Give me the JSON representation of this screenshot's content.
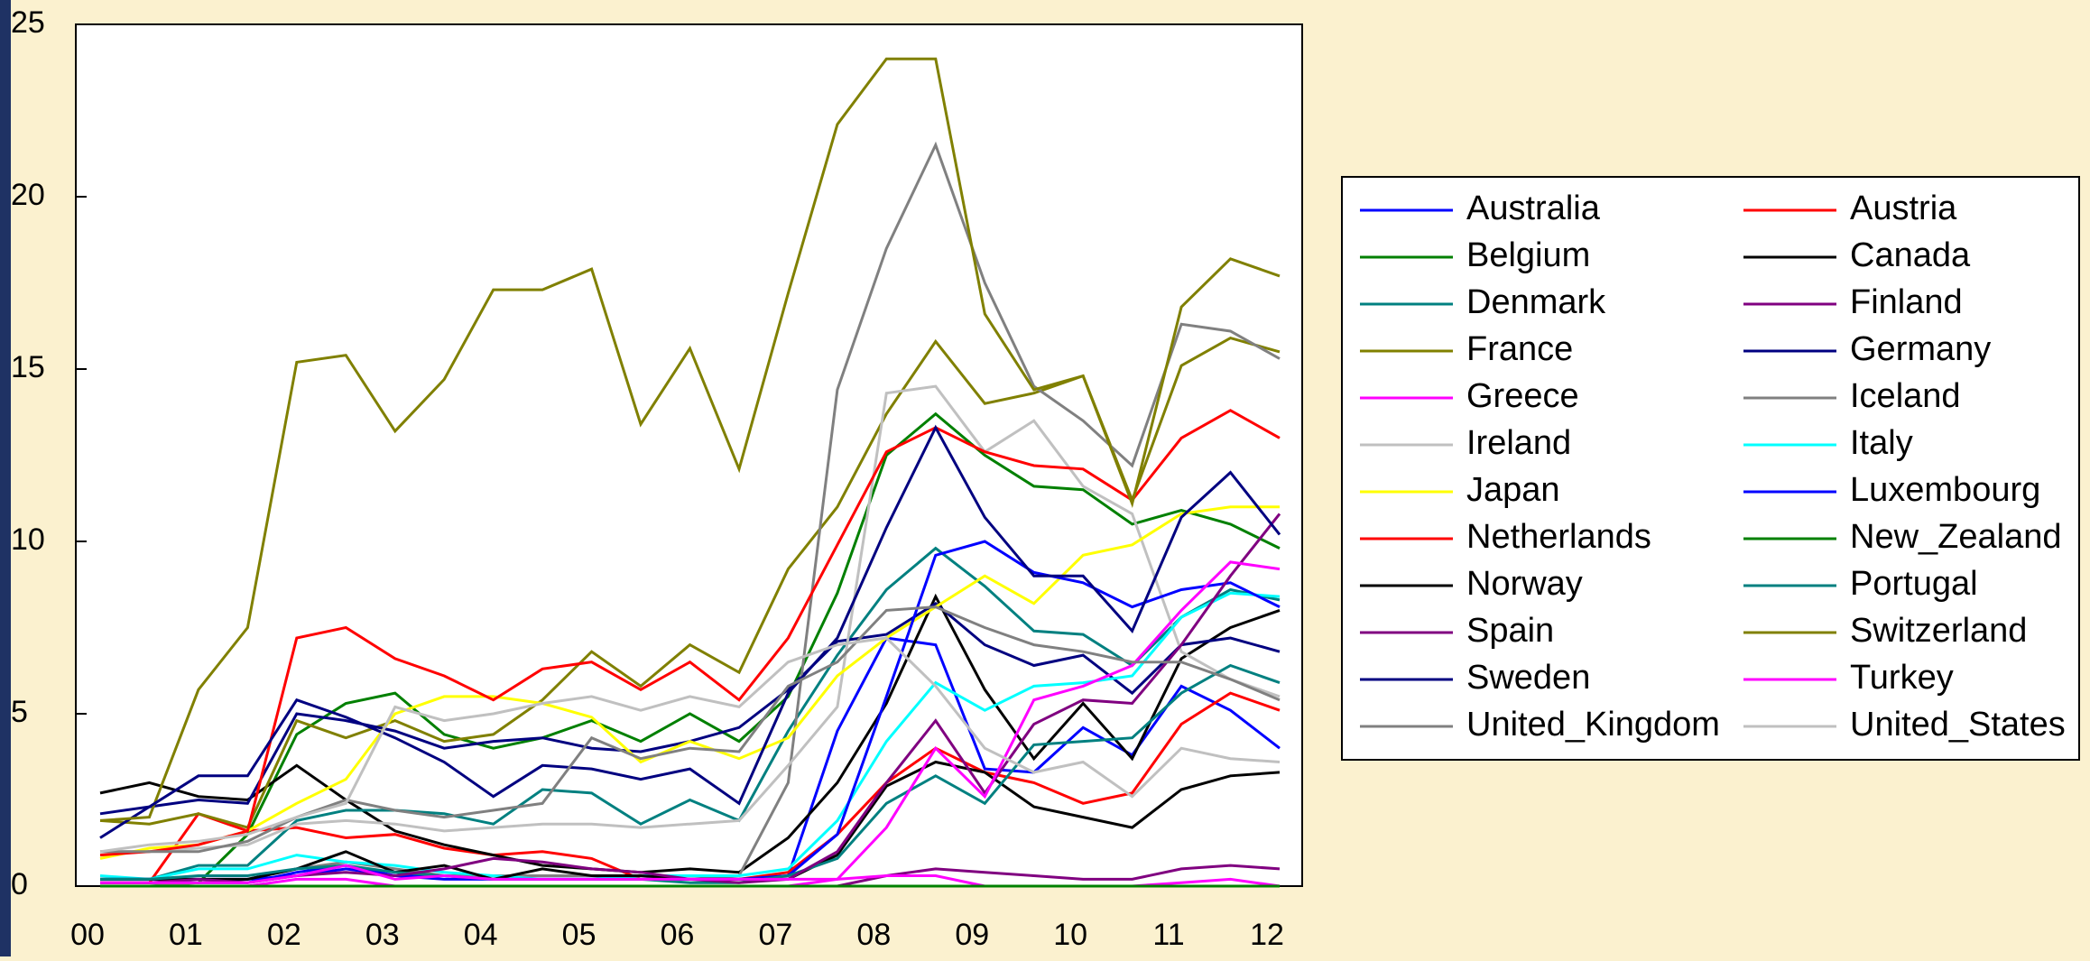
{
  "chart_data": {
    "type": "line",
    "categories": [
      "00",
      null,
      "01",
      null,
      "02",
      null,
      "03",
      null,
      "04",
      null,
      "05",
      null,
      "06",
      null,
      "07",
      null,
      "08",
      null,
      "09",
      null,
      "10",
      null,
      "11",
      null,
      "12"
    ],
    "ylim": [
      0,
      25
    ],
    "yticks": [
      0,
      5,
      10,
      15,
      20,
      25
    ],
    "grid": false,
    "legend": "right",
    "series": [
      {
        "name": "Australia",
        "color": "#0000ff",
        "values": [
          0.1,
          0.1,
          0.1,
          0.1,
          0.4,
          0.6,
          0.3,
          0.3,
          0.2,
          0.2,
          0.2,
          0.2,
          0.2,
          0.2,
          0.3,
          4.5,
          7.2,
          7.0,
          3.4,
          3.3,
          4.6,
          3.8,
          5.8,
          5.1,
          4.0
        ]
      },
      {
        "name": "Austria",
        "color": "#ff0000",
        "values": [
          0.1,
          0.1,
          2.1,
          1.6,
          1.7,
          1.4,
          1.5,
          1.1,
          0.9,
          1.0,
          0.8,
          0.2,
          0.2,
          0.2,
          0.4,
          1.5,
          3.0,
          4.0,
          3.3,
          3.0,
          2.4,
          2.7,
          4.7,
          5.6,
          5.1
        ]
      },
      {
        "name": "Belgium",
        "color": "#008000",
        "values": [
          0.1,
          0.1,
          0.1,
          1.5,
          4.4,
          5.3,
          5.6,
          4.4,
          4.0,
          4.3,
          4.8,
          4.2,
          5.0,
          4.2,
          5.5,
          8.5,
          12.5,
          13.7,
          12.5,
          11.6,
          11.5,
          10.5,
          10.9,
          10.5,
          9.8
        ]
      },
      {
        "name": "Canada",
        "color": "#000000",
        "values": [
          2.7,
          3.0,
          2.6,
          2.5,
          3.5,
          2.5,
          1.6,
          1.2,
          0.9,
          0.6,
          0.5,
          0.4,
          0.5,
          0.4,
          1.4,
          3.0,
          5.3,
          8.4,
          5.7,
          3.7,
          5.3,
          3.7,
          6.6,
          7.5,
          8.0
        ]
      },
      {
        "name": "Denmark",
        "color": "#008080",
        "values": [
          0.2,
          0.2,
          0.6,
          0.6,
          1.9,
          2.2,
          2.2,
          2.1,
          1.8,
          2.8,
          2.7,
          1.8,
          2.5,
          1.9,
          4.5,
          6.7,
          8.6,
          9.8,
          8.7,
          7.4,
          7.3,
          6.4,
          7.8,
          8.6,
          8.3
        ]
      },
      {
        "name": "Finland",
        "color": "#800080",
        "values": [
          0,
          0,
          0,
          0,
          0,
          0,
          0,
          0,
          0,
          0,
          0,
          0,
          0,
          0,
          0,
          0,
          0.3,
          0.5,
          0.4,
          0.3,
          0.2,
          0.2,
          0.5,
          0.6,
          0.5
        ]
      },
      {
        "name": "France",
        "color": "#808000",
        "values": [
          1.9,
          1.8,
          2.1,
          1.7,
          4.8,
          4.3,
          4.8,
          4.2,
          4.4,
          5.4,
          6.8,
          5.8,
          7.0,
          6.2,
          9.2,
          11.0,
          13.7,
          15.8,
          14.0,
          14.3,
          14.8,
          11.2,
          15.1,
          15.9,
          15.5
        ]
      },
      {
        "name": "Germany",
        "color": "#000080",
        "values": [
          1.4,
          2.3,
          2.5,
          2.4,
          5.0,
          4.8,
          4.5,
          4.0,
          4.2,
          4.3,
          4.0,
          3.9,
          4.2,
          4.6,
          5.7,
          7.1,
          7.3,
          8.2,
          7.0,
          6.4,
          6.7,
          5.6,
          7.0,
          7.2,
          6.8
        ]
      },
      {
        "name": "Greece",
        "color": "#ff00ff",
        "values": [
          0,
          0,
          0,
          0,
          0.2,
          0.2,
          0,
          0,
          0,
          0,
          0,
          0,
          0,
          0,
          0,
          0.2,
          0.3,
          0.3,
          0,
          0,
          0,
          0,
          0.1,
          0.2,
          0
        ]
      },
      {
        "name": "Iceland",
        "color": "#808080",
        "values": [
          0,
          0,
          0.1,
          0.2,
          0.5,
          0.7,
          0.5,
          0.3,
          0.3,
          0.3,
          0.3,
          0.2,
          0.2,
          0.3,
          3.0,
          14.4,
          18.5,
          21.5,
          17.5,
          14.5,
          13.5,
          12.2,
          16.3,
          16.1,
          15.3
        ]
      },
      {
        "name": "Ireland",
        "color": "#c0c0c0",
        "values": [
          1.0,
          1.0,
          1.1,
          1.2,
          1.8,
          1.9,
          1.8,
          1.6,
          1.7,
          1.8,
          1.8,
          1.7,
          1.8,
          1.9,
          3.5,
          5.2,
          14.3,
          14.5,
          12.6,
          13.5,
          11.6,
          10.8,
          6.8,
          6.0,
          5.5
        ]
      },
      {
        "name": "Italy",
        "color": "#00ffff",
        "values": [
          0.3,
          0.2,
          0.5,
          0.5,
          0.9,
          0.7,
          0.6,
          0.4,
          0.3,
          0.2,
          0.2,
          0.3,
          0.3,
          0.3,
          0.5,
          1.9,
          4.2,
          5.9,
          5.1,
          5.8,
          5.9,
          6.1,
          7.8,
          8.5,
          8.4
        ]
      },
      {
        "name": "Japan",
        "color": "#ffff00",
        "values": [
          0.8,
          1.1,
          1.2,
          1.6,
          2.4,
          3.1,
          5.0,
          5.5,
          5.5,
          5.3,
          4.9,
          3.6,
          4.2,
          3.7,
          4.3,
          6.1,
          7.2,
          8.1,
          9.0,
          8.2,
          9.6,
          9.9,
          10.8,
          11.0,
          11.0
        ]
      },
      {
        "name": "Luxembourg",
        "color": "#0000ff",
        "values": [
          0.2,
          0.2,
          0.2,
          0.2,
          0.3,
          0.5,
          0.3,
          0.2,
          0.2,
          0.2,
          0.2,
          0.2,
          0.2,
          0.2,
          0.3,
          1.5,
          5.5,
          9.6,
          10.0,
          9.1,
          8.8,
          8.1,
          8.6,
          8.8,
          8.1
        ]
      },
      {
        "name": "Netherlands",
        "color": "#ff0000",
        "values": [
          0.9,
          1.0,
          1.2,
          1.6,
          7.2,
          7.5,
          6.6,
          6.1,
          5.4,
          6.3,
          6.5,
          5.7,
          6.5,
          5.4,
          7.2,
          9.9,
          12.6,
          13.3,
          12.6,
          12.2,
          12.1,
          11.2,
          13.0,
          13.8,
          13.0
        ]
      },
      {
        "name": "New_Zealand",
        "color": "#008000",
        "values": [
          0,
          0,
          0,
          0,
          0,
          0,
          0,
          0,
          0,
          0,
          0,
          0,
          0,
          0,
          0,
          0,
          0,
          0,
          0,
          0,
          0,
          0,
          0,
          0,
          0
        ]
      },
      {
        "name": "Norway",
        "color": "#000000",
        "values": [
          0.2,
          0.2,
          0.2,
          0.2,
          0.5,
          1.0,
          0.4,
          0.6,
          0.2,
          0.5,
          0.3,
          0.3,
          0.2,
          0.2,
          0.2,
          0.9,
          2.9,
          3.6,
          3.3,
          2.3,
          2.0,
          1.7,
          2.8,
          3.2,
          3.3
        ]
      },
      {
        "name": "Portugal",
        "color": "#008080",
        "values": [
          0.2,
          0.2,
          0.3,
          0.3,
          0.5,
          0.6,
          0.4,
          0.3,
          0.2,
          0.2,
          0.2,
          0.2,
          0.1,
          0.1,
          0.3,
          0.8,
          2.4,
          3.2,
          2.4,
          4.1,
          4.2,
          4.3,
          5.6,
          6.4,
          5.9
        ]
      },
      {
        "name": "Spain",
        "color": "#800080",
        "values": [
          0.1,
          0.1,
          0.2,
          0.1,
          0.3,
          0.4,
          0.3,
          0.5,
          0.8,
          0.7,
          0.5,
          0.4,
          0.2,
          0.1,
          0.2,
          1.0,
          3.0,
          4.8,
          2.7,
          4.7,
          5.4,
          5.3,
          7.0,
          9.0,
          10.8
        ]
      },
      {
        "name": "Switzerland",
        "color": "#808000",
        "values": [
          1.9,
          2.0,
          5.7,
          7.5,
          15.2,
          15.4,
          13.2,
          14.7,
          17.3,
          17.3,
          17.9,
          13.4,
          15.6,
          12.1,
          17.2,
          22.1,
          24.0,
          24.0,
          16.6,
          14.4,
          14.8,
          11.1,
          16.8,
          18.2,
          17.7
        ]
      },
      {
        "name": "Sweden",
        "color": "#000080",
        "values": [
          2.1,
          2.3,
          3.2,
          3.2,
          5.4,
          4.9,
          4.3,
          3.6,
          2.6,
          3.5,
          3.4,
          3.1,
          3.4,
          2.4,
          5.6,
          7.2,
          10.4,
          13.3,
          10.7,
          9.0,
          9.0,
          7.4,
          10.7,
          12.0,
          10.2
        ]
      },
      {
        "name": "Turkey",
        "color": "#ff00ff",
        "values": [
          0.1,
          0.1,
          0.1,
          0.1,
          0.3,
          0.6,
          0.2,
          0.3,
          0.2,
          0.2,
          0.2,
          0.2,
          0.2,
          0.2,
          0.2,
          0.2,
          1.7,
          4.0,
          2.6,
          5.4,
          5.8,
          6.4,
          8.0,
          9.4,
          9.2
        ]
      },
      {
        "name": "United_Kingdom",
        "color": "#808080",
        "values": [
          1.0,
          1.0,
          1.0,
          1.3,
          2.0,
          2.5,
          2.2,
          2.0,
          2.2,
          2.4,
          4.3,
          3.7,
          4.0,
          3.9,
          5.8,
          6.5,
          8.0,
          8.1,
          7.5,
          7.0,
          6.8,
          6.5,
          6.5,
          6.0,
          5.4
        ]
      },
      {
        "name": "United_States",
        "color": "#c0c0c0",
        "values": [
          1.0,
          1.2,
          1.3,
          1.5,
          2.0,
          2.4,
          5.2,
          4.8,
          5.0,
          5.3,
          5.5,
          5.1,
          5.5,
          5.2,
          6.5,
          7.0,
          7.2,
          5.8,
          4.0,
          3.3,
          3.6,
          2.6,
          4.0,
          3.7,
          3.6
        ]
      }
    ]
  }
}
